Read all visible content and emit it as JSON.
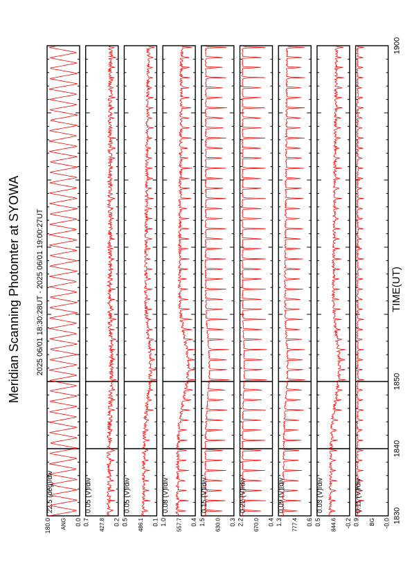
{
  "chart_data": {
    "type": "line",
    "title": "Meridian Scanning Photomter at SYOWA",
    "time_range": "2025 06/01 18:30:28UT - 2025 06/01 19:00:27UT",
    "xlabel": "TIME(UT)",
    "xlim": [
      1830,
      1900
    ],
    "x_ticks": [
      "1830",
      "1840",
      "1850",
      "1900"
    ],
    "series_color": "#ff0000",
    "panels": [
      {
        "name": "ANG",
        "scale": "22.5 (deg)/div",
        "ylim": [
          "0.0",
          "180.0"
        ],
        "waveform": "scan",
        "amplitude": 0.88,
        "base": 0.06,
        "noise": 0.02,
        "trend": 0.0,
        "storm": 0.0
      },
      {
        "name": "427.8",
        "scale": "0.05 (V)/div",
        "ylim": [
          "0.2",
          "0.7"
        ],
        "waveform": "pulse",
        "amplitude": 0.14,
        "base": 0.72,
        "noise": 0.14,
        "trend": 0.04,
        "storm": 0.06
      },
      {
        "name": "486.1",
        "scale": "0.05 (V)/div",
        "ylim": [
          "0.1",
          "0.5"
        ],
        "waveform": "pulse",
        "amplitude": 0.2,
        "base": 0.58,
        "noise": 0.1,
        "trend": 0.16,
        "storm": 0.18
      },
      {
        "name": "557.7",
        "scale": "0.08 (V)/div",
        "ylim": [
          "0.4",
          "1.0"
        ],
        "waveform": "pulse",
        "amplitude": 0.34,
        "base": 0.44,
        "noise": 0.09,
        "trend": 0.14,
        "storm": 0.3
      },
      {
        "name": "630.0",
        "scale": "0.15 (V)/div",
        "ylim": [
          "0.3",
          "1.5"
        ],
        "waveform": "pulse",
        "amplitude": 0.7,
        "base": 0.12,
        "noise": 0.04,
        "trend": 0.02,
        "storm": 0.12
      },
      {
        "name": "670.0",
        "scale": "0.22 (V)/div",
        "ylim": [
          "0.4",
          "2.2"
        ],
        "waveform": "pulse",
        "amplitude": 0.78,
        "base": 0.08,
        "noise": 0.03,
        "trend": 0.0,
        "storm": 0.05
      },
      {
        "name": "777.4",
        "scale": "0.09 (V)/div",
        "ylim": [
          "0.6",
          "1.3"
        ],
        "waveform": "pulse",
        "amplitude": 0.62,
        "base": 0.14,
        "noise": 0.05,
        "trend": 0.12,
        "storm": 0.1
      },
      {
        "name": "844.6",
        "scale": "0.03 (V)/div",
        "ylim": [
          "-0.2",
          "0.5"
        ],
        "waveform": "pulse",
        "amplitude": 0.22,
        "base": 0.4,
        "noise": 0.09,
        "trend": 0.2,
        "storm": 0.22
      },
      {
        "name": "BG",
        "scale": "0.11 (V)/div",
        "ylim": [
          "-0.0",
          "0.9"
        ],
        "waveform": "pulse",
        "amplitude": 0.2,
        "base": 0.06,
        "noise": 0.05,
        "trend": 0.0,
        "storm": 0.0
      }
    ]
  }
}
